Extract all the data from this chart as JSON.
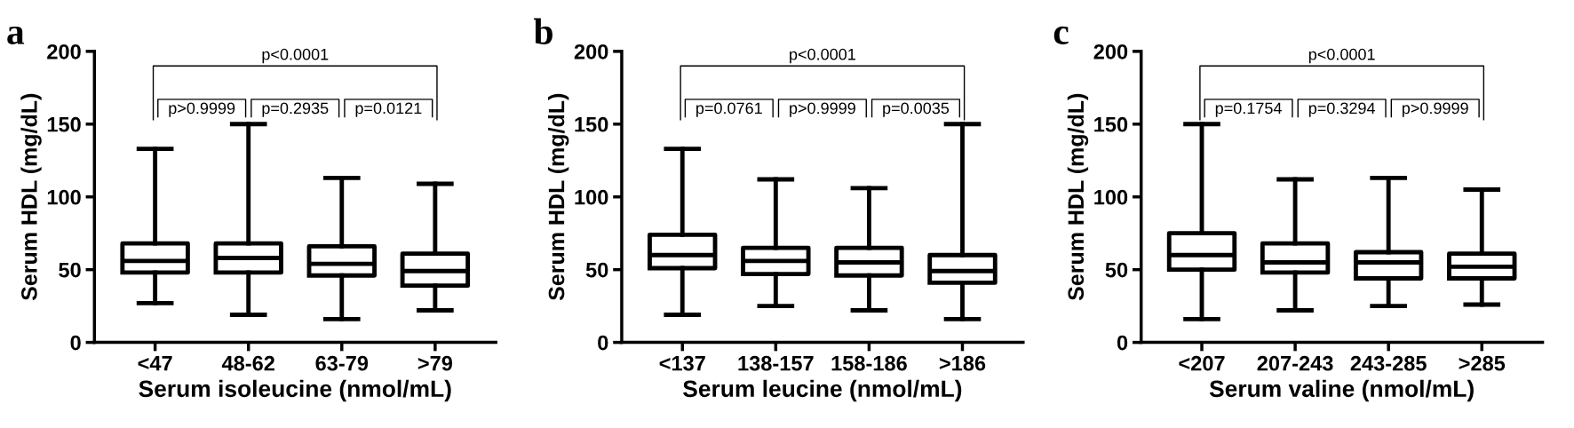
{
  "chart_data": [
    {
      "type": "box",
      "title": "a",
      "xlabel": "Serum isoleucine (nmol/mL)",
      "ylabel": "Serum HDL (mg/dL)",
      "categories": [
        "<47",
        "48-62",
        "63-79",
        ">79"
      ],
      "ylim": [
        0,
        200
      ],
      "yticks": [
        0,
        50,
        100,
        150,
        200
      ],
      "grid": false,
      "boxes": [
        {
          "low": 27,
          "q1": 48,
          "median": 56,
          "q3": 68,
          "high": 133
        },
        {
          "low": 19,
          "q1": 48,
          "median": 58,
          "q3": 68,
          "high": 150
        },
        {
          "low": 16,
          "q1": 46,
          "median": 54,
          "q3": 66,
          "high": 113
        },
        {
          "low": 22,
          "q1": 39,
          "median": 49,
          "q3": 61,
          "high": 109
        }
      ],
      "annotations": [
        "p<0.0001",
        "p>0.9999",
        "p=0.2935",
        "p=0.0121"
      ]
    },
    {
      "type": "box",
      "title": "b",
      "xlabel": "Serum leucine (nmol/mL)",
      "ylabel": "Serum HDL (mg/dL)",
      "categories": [
        "<137",
        "138-157",
        "158-186",
        ">186"
      ],
      "ylim": [
        0,
        200
      ],
      "yticks": [
        0,
        50,
        100,
        150,
        200
      ],
      "grid": false,
      "boxes": [
        {
          "low": 19,
          "q1": 51,
          "median": 60,
          "q3": 74,
          "high": 133
        },
        {
          "low": 25,
          "q1": 47,
          "median": 56,
          "q3": 65,
          "high": 112
        },
        {
          "low": 22,
          "q1": 46,
          "median": 55,
          "q3": 65,
          "high": 106
        },
        {
          "low": 16,
          "q1": 41,
          "median": 49,
          "q3": 60,
          "high": 150
        }
      ],
      "annotations": [
        "p<0.0001",
        "p=0.0761",
        "p>0.9999",
        "p=0.0035"
      ]
    },
    {
      "type": "box",
      "title": "c",
      "xlabel": "Serum valine (nmol/mL)",
      "ylabel": "Serum HDL (mg/dL)",
      "categories": [
        "<207",
        "207-243",
        "243-285",
        ">285"
      ],
      "ylim": [
        0,
        200
      ],
      "yticks": [
        0,
        50,
        100,
        150,
        200
      ],
      "grid": false,
      "boxes": [
        {
          "low": 16,
          "q1": 50,
          "median": 60,
          "q3": 75,
          "high": 150
        },
        {
          "low": 22,
          "q1": 48,
          "median": 55,
          "q3": 68,
          "high": 112
        },
        {
          "low": 25,
          "q1": 44,
          "median": 55,
          "q3": 62,
          "high": 113
        },
        {
          "low": 26,
          "q1": 44,
          "median": 52,
          "q3": 61,
          "high": 105
        }
      ],
      "annotations": [
        "p<0.0001",
        "p=0.1754",
        "p=0.3294",
        "p>0.9999"
      ]
    }
  ]
}
